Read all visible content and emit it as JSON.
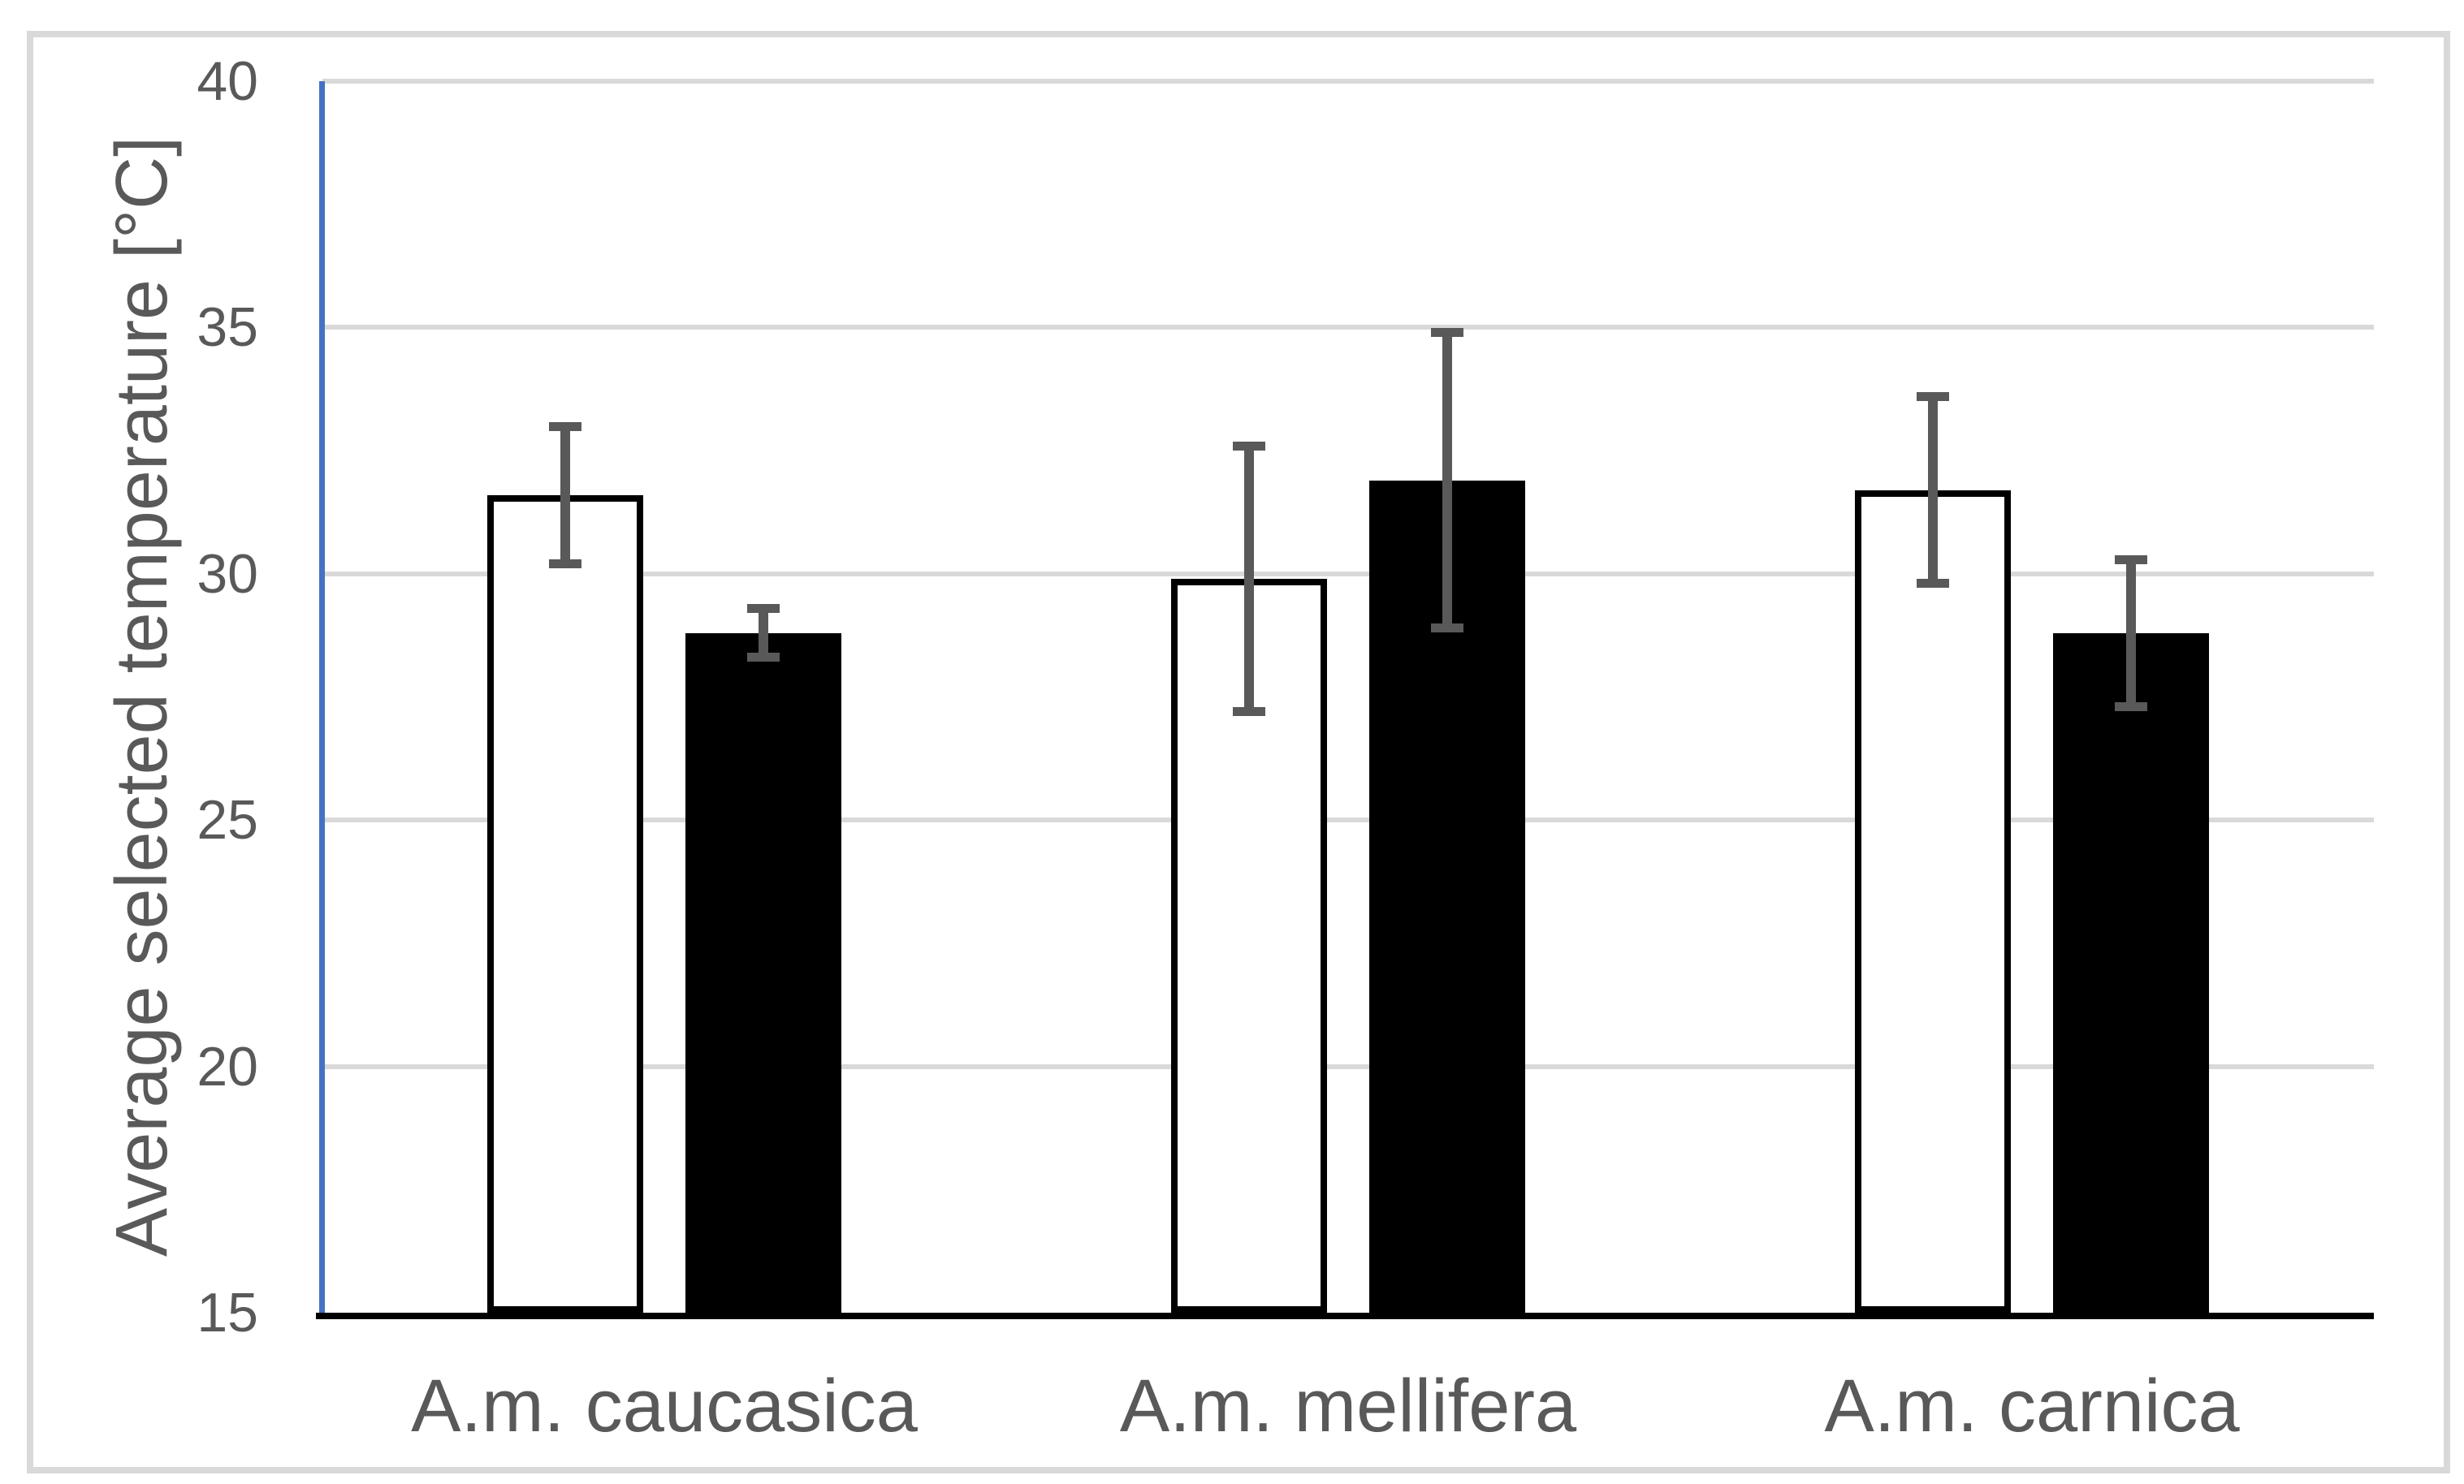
{
  "figure": {
    "background": "#ffffff",
    "border_color": "#d9d9d9"
  },
  "chart_data": {
    "type": "bar",
    "title": "",
    "xlabel": "",
    "ylabel": "Average selected temperature [°C]",
    "categories": [
      "A.m. caucasica",
      "A.m. mellifera",
      "A.m. carnica"
    ],
    "series": [
      {
        "name": "open-white-bars",
        "fill": "#ffffff",
        "outline": "#000000",
        "values": [
          31.6,
          29.9,
          31.7
        ],
        "error_high": [
          33.0,
          32.6,
          33.6
        ],
        "error_low": [
          30.2,
          27.2,
          29.8
        ]
      },
      {
        "name": "filled-black-bars",
        "fill": "#000000",
        "outline": "#000000",
        "values": [
          28.8,
          31.9,
          28.8
        ],
        "error_high": [
          29.3,
          34.9,
          30.3
        ],
        "error_low": [
          28.3,
          28.9,
          27.3
        ]
      }
    ],
    "ylim": [
      15,
      40
    ],
    "yticks": [
      15,
      20,
      25,
      30,
      35,
      40
    ],
    "grid": "horizontal",
    "legend": "none",
    "colors": {
      "axis_line": "#4472C4",
      "axis_bottom": "#000000",
      "gridline": "#D9D9D9",
      "error_bar": "#595959",
      "text": "#595959"
    }
  }
}
